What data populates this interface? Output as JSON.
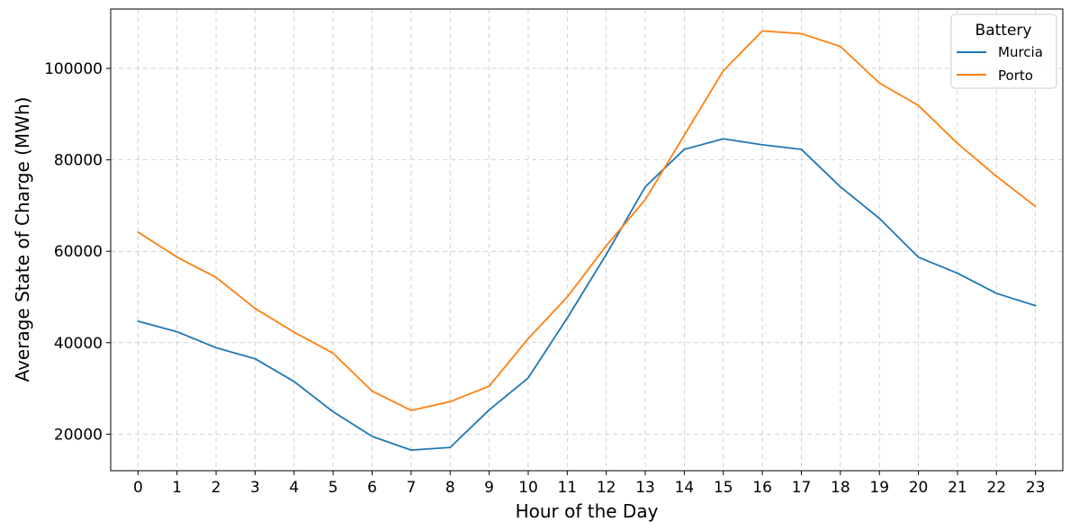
{
  "chart_data": {
    "type": "line",
    "title": "",
    "xlabel": "Hour of the Day",
    "ylabel": "Average State of Charge (MWh)",
    "x": [
      0,
      1,
      2,
      3,
      4,
      5,
      6,
      7,
      8,
      9,
      10,
      11,
      12,
      13,
      14,
      15,
      16,
      17,
      18,
      19,
      20,
      21,
      22,
      23
    ],
    "x_ticks": [
      "0",
      "1",
      "2",
      "3",
      "4",
      "5",
      "6",
      "7",
      "8",
      "9",
      "10",
      "11",
      "12",
      "13",
      "14",
      "15",
      "16",
      "17",
      "18",
      "19",
      "20",
      "21",
      "22",
      "23"
    ],
    "y_ticks": [
      "20000",
      "40000",
      "60000",
      "80000",
      "100000"
    ],
    "xlim": [
      -0.7,
      23.7
    ],
    "ylim": [
      12000,
      113000
    ],
    "grid": true,
    "legend": {
      "title": "Battery",
      "position": "top-right"
    },
    "series": [
      {
        "name": "Murcia",
        "color": "#1f77b4",
        "values": [
          44700,
          42400,
          38900,
          36500,
          31500,
          24900,
          19500,
          16500,
          17100,
          25300,
          32300,
          45400,
          59300,
          74100,
          82300,
          84600,
          83300,
          82300,
          74100,
          67200,
          58700,
          55200,
          50800,
          48100
        ]
      },
      {
        "name": "Porto",
        "color": "#ff7f0e",
        "values": [
          64200,
          58700,
          54300,
          47500,
          42300,
          37700,
          29400,
          25200,
          27100,
          30500,
          40900,
          50000,
          61200,
          71300,
          85400,
          99500,
          108200,
          107600,
          104800,
          96800,
          91900,
          83600,
          76400,
          69800
        ]
      }
    ]
  }
}
